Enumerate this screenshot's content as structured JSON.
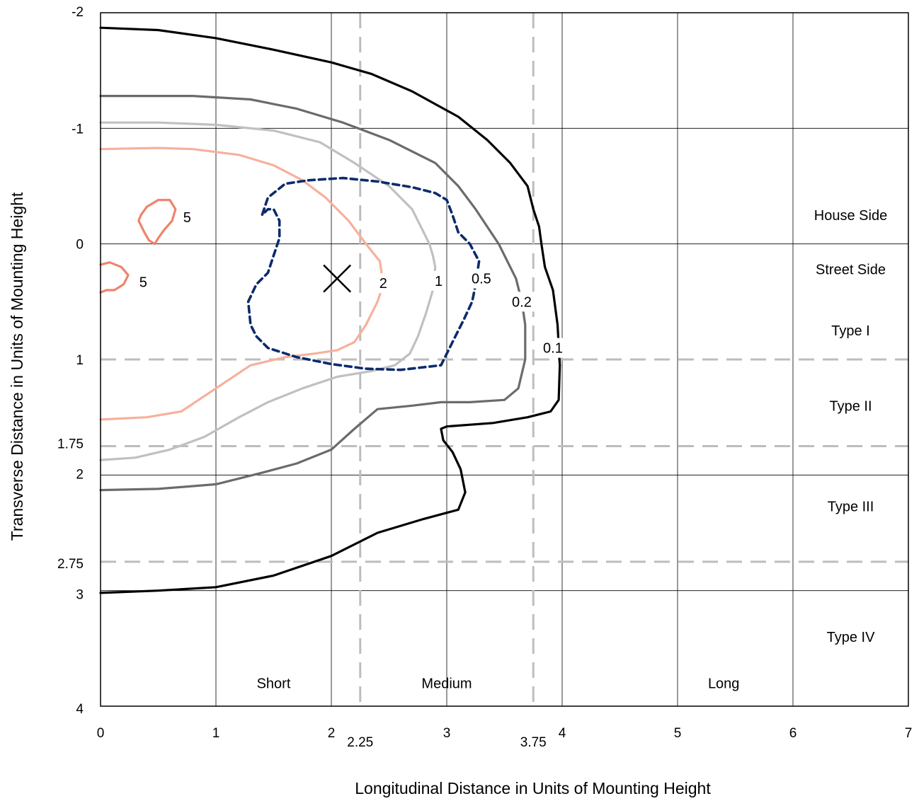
{
  "chart_data": {
    "type": "line",
    "xlabel": "Longitudinal Distance in Units of Mounting Height",
    "ylabel": "Transverse Distance in Units of Mounting Height",
    "xlim": [
      0,
      7
    ],
    "ylim": [
      -2,
      4
    ],
    "y_inverted": true,
    "x_ticks": [
      "0",
      "1",
      "2",
      "3",
      "4",
      "5",
      "6",
      "7"
    ],
    "x_extra_ticks": [
      {
        "value": 2.25,
        "label": "2.25"
      },
      {
        "value": 3.75,
        "label": "3.75"
      }
    ],
    "y_ticks": [
      {
        "value": -2,
        "label": "-2"
      },
      {
        "value": -1,
        "label": "-1"
      },
      {
        "value": 0,
        "label": "0"
      },
      {
        "value": 1,
        "label": "1"
      },
      {
        "value": 1.75,
        "label": "1.75"
      },
      {
        "value": 2,
        "label": "2"
      },
      {
        "value": 2.75,
        "label": "2.75"
      },
      {
        "value": 3,
        "label": "3"
      },
      {
        "value": 4,
        "label": "4"
      }
    ],
    "grid": true,
    "dashed_ref_lines": {
      "vertical": [
        2.25,
        3.75
      ],
      "horizontal": [
        1,
        1.75,
        2.75
      ]
    },
    "regions": [
      {
        "label": "House Side",
        "x": 6.5,
        "y": -0.25
      },
      {
        "label": "Street Side",
        "x": 6.5,
        "y": 0.22
      },
      {
        "label": "Type I",
        "x": 6.5,
        "y": 0.75
      },
      {
        "label": "Type II",
        "x": 6.5,
        "y": 1.4
      },
      {
        "label": "Type III",
        "x": 6.5,
        "y": 2.27
      },
      {
        "label": "Type IV",
        "x": 6.5,
        "y": 3.4
      },
      {
        "label": "Short",
        "x": 1.5,
        "y": 3.8
      },
      {
        "label": "Medium",
        "x": 3.0,
        "y": 3.8
      },
      {
        "label": "Long",
        "x": 5.4,
        "y": 3.8
      }
    ],
    "marker": {
      "symbol": "X",
      "x": 2.05,
      "y": 0.3
    },
    "contour_colors": {
      "5": "#f0836b",
      "2": "#f7b09c",
      "1": "#c0c0c0",
      "0.5": "#0d2b6b",
      "0.2": "#6b6b6b",
      "0.1": "#000000"
    },
    "series": [
      {
        "name": "5",
        "label_pos": [
          0.75,
          -0.23
        ],
        "x": [
          0.35,
          0.4,
          0.5,
          0.6,
          0.65,
          0.62,
          0.55,
          0.5,
          0.47,
          0.42,
          0.38,
          0.33,
          0.35
        ],
        "y": [
          -0.25,
          -0.32,
          -0.38,
          -0.38,
          -0.3,
          -0.2,
          -0.12,
          -0.05,
          0.0,
          -0.03,
          -0.1,
          -0.2,
          -0.25
        ]
      },
      {
        "name": "5",
        "label_pos": [
          0.37,
          0.33
        ],
        "x": [
          0.0,
          0.08,
          0.18,
          0.24,
          0.2,
          0.12,
          0.05,
          0.0
        ],
        "y": [
          0.18,
          0.16,
          0.2,
          0.27,
          0.35,
          0.4,
          0.4,
          0.42
        ]
      },
      {
        "name": "2",
        "label_pos": [
          2.45,
          0.34
        ],
        "x": [
          0.0,
          0.5,
          0.8,
          1.2,
          1.5,
          1.75,
          1.95,
          2.15,
          2.3,
          2.38,
          2.42,
          2.45,
          2.4,
          2.3,
          2.2,
          2.05,
          1.85,
          1.6,
          1.3,
          1.0,
          0.7,
          0.4,
          0.0
        ],
        "y": [
          -0.82,
          -0.83,
          -0.82,
          -0.77,
          -0.68,
          -0.55,
          -0.4,
          -0.2,
          0.0,
          0.1,
          0.15,
          0.35,
          0.5,
          0.7,
          0.85,
          0.92,
          0.95,
          0.98,
          1.05,
          1.25,
          1.45,
          1.5,
          1.52
        ]
      },
      {
        "name": "1",
        "label_pos": [
          2.93,
          0.32
        ],
        "x": [
          0.0,
          0.5,
          1.0,
          1.5,
          1.9,
          2.2,
          2.5,
          2.7,
          2.8,
          2.85,
          2.88,
          2.9,
          2.88,
          2.82,
          2.75,
          2.68,
          2.55,
          2.35,
          2.05,
          1.75,
          1.45,
          1.2,
          0.9,
          0.6,
          0.3,
          0.0
        ],
        "y": [
          -1.05,
          -1.05,
          -1.03,
          -0.98,
          -0.88,
          -0.7,
          -0.5,
          -0.3,
          -0.1,
          0.0,
          0.1,
          0.2,
          0.4,
          0.6,
          0.8,
          0.95,
          1.05,
          1.1,
          1.15,
          1.25,
          1.37,
          1.5,
          1.67,
          1.78,
          1.85,
          1.87
        ]
      },
      {
        "name": "0.5",
        "label_pos": [
          3.3,
          0.3
        ],
        "dashed": true,
        "x": [
          1.8,
          2.1,
          2.4,
          2.7,
          2.9,
          3.0,
          3.05,
          3.1,
          3.2,
          3.28,
          3.25,
          3.22,
          3.15,
          3.05,
          2.95,
          2.6,
          2.3,
          2.0,
          1.7,
          1.45,
          1.35,
          1.3,
          1.28,
          1.35,
          1.45,
          1.5,
          1.55,
          1.55,
          1.5,
          1.45,
          1.4,
          1.45,
          1.6,
          1.8
        ],
        "y": [
          -0.55,
          -0.57,
          -0.54,
          -0.49,
          -0.44,
          -0.38,
          -0.25,
          -0.1,
          0.0,
          0.15,
          0.35,
          0.5,
          0.65,
          0.85,
          1.05,
          1.09,
          1.08,
          1.04,
          0.98,
          0.9,
          0.8,
          0.7,
          0.5,
          0.35,
          0.25,
          0.1,
          -0.05,
          -0.2,
          -0.3,
          -0.3,
          -0.25,
          -0.4,
          -0.52,
          -0.55
        ]
      },
      {
        "name": "0.2",
        "label_pos": [
          3.65,
          0.5
        ],
        "x": [
          0.0,
          0.8,
          1.3,
          1.7,
          2.1,
          2.5,
          2.9,
          3.1,
          3.25,
          3.35,
          3.45,
          3.5,
          3.6,
          3.65,
          3.68,
          3.68,
          3.62,
          3.5,
          3.2,
          2.95,
          2.7,
          2.4,
          2.2,
          2.0,
          1.7,
          1.4,
          1.0,
          0.5,
          0.0
        ],
        "y": [
          -1.28,
          -1.28,
          -1.25,
          -1.17,
          -1.05,
          -0.9,
          -0.7,
          -0.5,
          -0.3,
          -0.15,
          0.0,
          0.1,
          0.3,
          0.5,
          0.7,
          1.0,
          1.25,
          1.35,
          1.37,
          1.37,
          1.4,
          1.43,
          1.6,
          1.78,
          1.9,
          1.98,
          2.08,
          2.12,
          2.13
        ]
      },
      {
        "name": "0.1",
        "label_pos": [
          3.92,
          0.9
        ],
        "x": [
          0.0,
          0.5,
          1.0,
          1.5,
          2.0,
          2.35,
          2.7,
          3.1,
          3.35,
          3.55,
          3.7,
          3.75,
          3.8,
          3.82,
          3.85,
          3.92,
          3.96,
          3.98,
          3.97,
          3.9,
          3.7,
          3.4,
          3.0,
          2.95,
          2.97,
          3.05,
          3.12,
          3.16,
          3.1,
          2.8,
          2.4,
          2.0,
          1.5,
          1.0,
          0.5,
          0.0
        ],
        "y": [
          -1.87,
          -1.85,
          -1.78,
          -1.68,
          -1.57,
          -1.47,
          -1.32,
          -1.1,
          -0.9,
          -0.7,
          -0.5,
          -0.3,
          -0.15,
          0.0,
          0.2,
          0.4,
          0.7,
          1.05,
          1.35,
          1.45,
          1.5,
          1.55,
          1.58,
          1.6,
          1.7,
          1.8,
          1.95,
          2.15,
          2.3,
          2.38,
          2.5,
          2.7,
          2.87,
          2.97,
          3.0,
          3.02
        ]
      }
    ]
  }
}
